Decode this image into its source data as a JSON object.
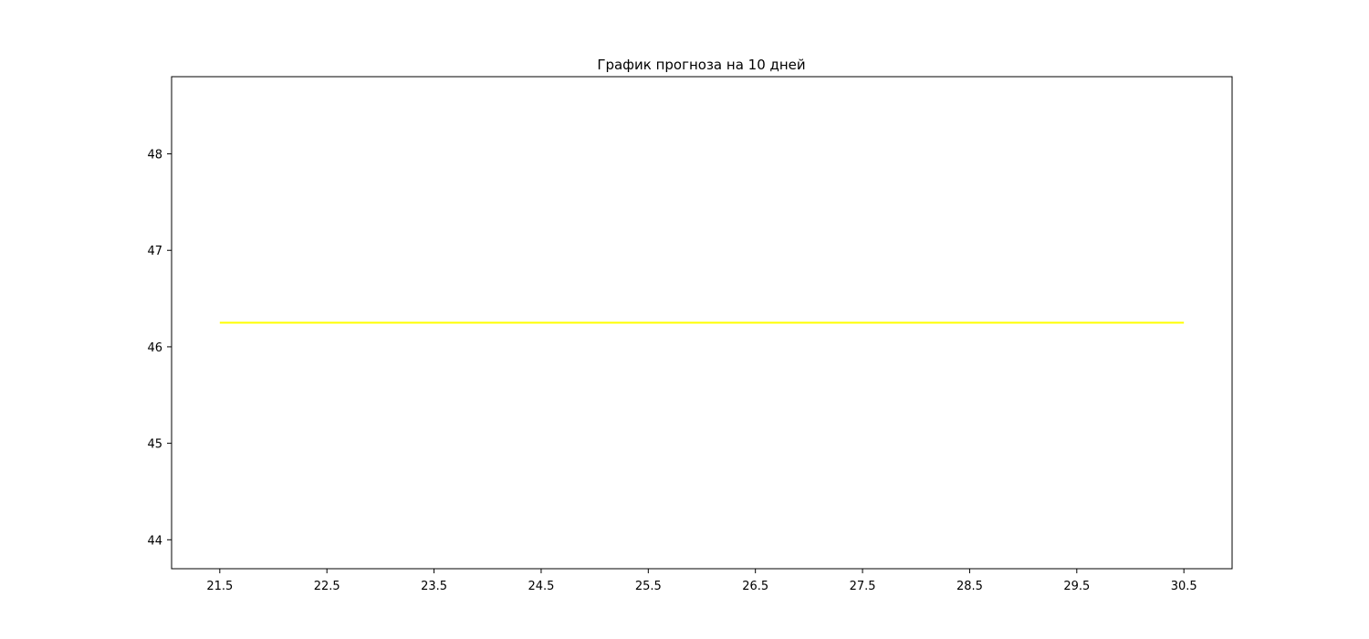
{
  "chart_data": {
    "type": "line",
    "title": "График прогноза на 10 дней",
    "xlabel": "",
    "ylabel": "",
    "xlim": [
      21.05,
      30.95
    ],
    "ylim": [
      43.7,
      48.8
    ],
    "x_ticks": [
      "21.5",
      "22.5",
      "23.5",
      "24.5",
      "25.5",
      "26.5",
      "27.5",
      "28.5",
      "29.5",
      "30.5"
    ],
    "y_ticks": [
      "44",
      "45",
      "46",
      "47",
      "48"
    ],
    "grid": false,
    "series": [
      {
        "color": "#ffff00",
        "x": [
          21.5,
          22.5,
          23.5,
          24.5,
          25.5,
          26.5,
          27.5,
          28.5,
          29.5,
          30.5
        ],
        "y": [
          46.25,
          46.25,
          46.25,
          46.25,
          46.25,
          46.25,
          46.25,
          46.25,
          46.25,
          46.25
        ]
      }
    ]
  }
}
